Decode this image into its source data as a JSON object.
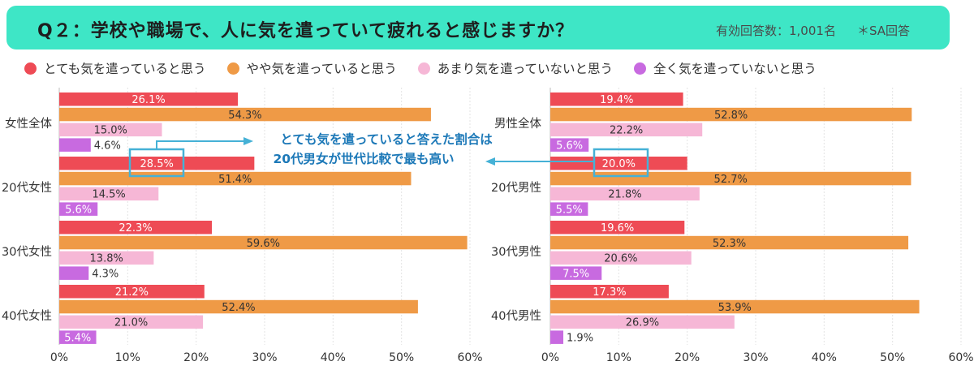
{
  "header": {
    "title": "Q２：学校や職場で、人に気を遣っていて疲れると感じますか？",
    "respondents": "有効回答数：1,001名",
    "answer_type": "＊SA回答"
  },
  "colors": {
    "header_bg": "#3ee6c6",
    "very": "#ee4b55",
    "somewhat": "#ef9a46",
    "not_much": "#f6b7d6",
    "not_at_all": "#c86ae0",
    "callout": "#1d79b8",
    "callout_box": "#45b1d6"
  },
  "legend": [
    {
      "label": "とても気を遣っていると思う",
      "color": "#ee4b55"
    },
    {
      "label": "やや気を遣っていると思う",
      "color": "#ef9a46"
    },
    {
      "label": "あまり気を遣っていないと思う",
      "color": "#f6b7d6"
    },
    {
      "label": "全く気を遣っていないと思う",
      "color": "#c86ae0"
    }
  ],
  "annotation": {
    "line1": "とても気を遣っていると答えた割合は",
    "line2": "20代男女が世代比較で最も高い"
  },
  "chart_data": [
    {
      "type": "bar",
      "orientation": "horizontal",
      "categories": [
        "女性全体",
        "20代女性",
        "30代女性",
        "40代女性"
      ],
      "series": [
        {
          "name": "とても気を遣っていると思う",
          "values": [
            26.1,
            28.5,
            22.3,
            21.2
          ]
        },
        {
          "name": "やや気を遣っていると思う",
          "values": [
            54.3,
            51.4,
            59.6,
            52.4
          ]
        },
        {
          "name": "あまり気を遣っていないと思う",
          "values": [
            15.0,
            14.5,
            13.8,
            21.0
          ]
        },
        {
          "name": "全く気を遣っていないと思う",
          "values": [
            4.6,
            5.6,
            4.3,
            5.4
          ]
        }
      ],
      "xlim": [
        0,
        60
      ],
      "ticks": [
        "0%",
        "10%",
        "20%",
        "30%",
        "40%",
        "50%",
        "60%"
      ],
      "grid": true
    },
    {
      "type": "bar",
      "orientation": "horizontal",
      "categories": [
        "男性全体",
        "20代男性",
        "30代男性",
        "40代男性"
      ],
      "series": [
        {
          "name": "とても気を遣っていると思う",
          "values": [
            19.4,
            20.0,
            19.6,
            17.3
          ]
        },
        {
          "name": "やや気を遣っていると思う",
          "values": [
            52.8,
            52.7,
            52.3,
            53.9
          ]
        },
        {
          "name": "あまり気を遣っていないと思う",
          "values": [
            22.2,
            21.8,
            20.6,
            26.9
          ]
        },
        {
          "name": "全く気を遣っていないと思う",
          "values": [
            5.6,
            5.5,
            7.5,
            1.9
          ]
        }
      ],
      "xlim": [
        0,
        60
      ],
      "ticks": [
        "0%",
        "10%",
        "20%",
        "30%",
        "40%",
        "50%",
        "60%"
      ],
      "grid": true
    }
  ]
}
